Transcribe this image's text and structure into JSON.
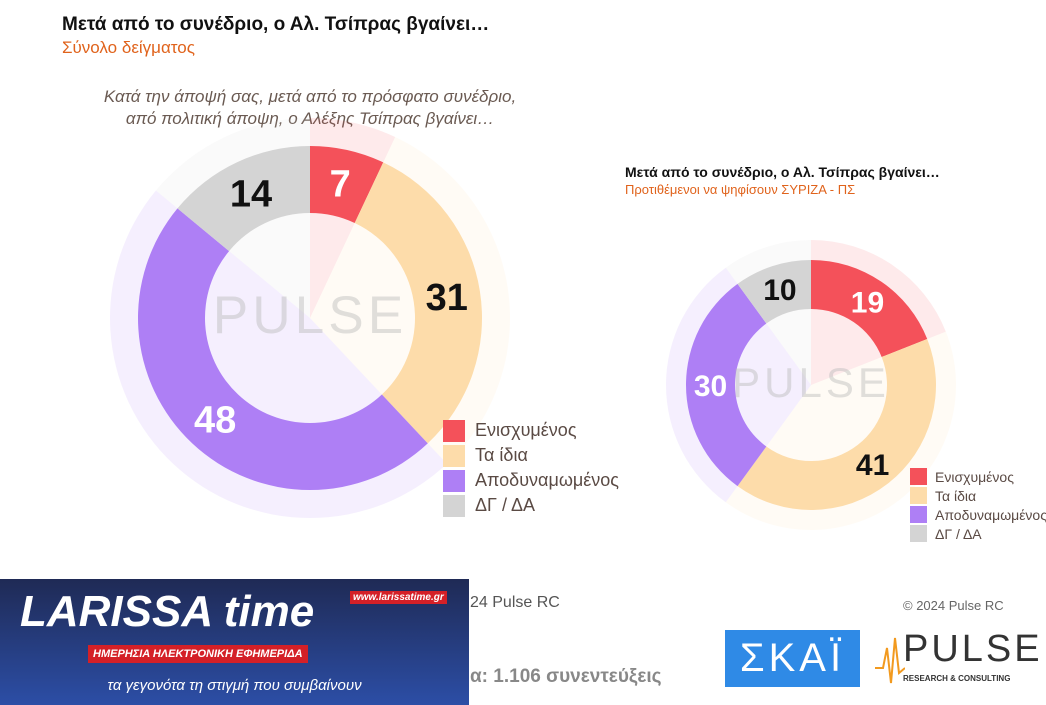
{
  "colors": {
    "Ενισχυμένος": "#f4515a",
    "Τα ίδια": "#fddcaa",
    "Αποδυναμωμένος": "#ae7ff5",
    "ΔΓ / ΔΑ": "#d4d4d4"
  },
  "chart_data": [
    {
      "type": "donut",
      "title": "Μετά από το συνέδριο, ο Αλ. Τσίπρας βγαίνει…",
      "subtitle": "Σύνολο δείγματος",
      "question": "Κατά την άποψή σας, μετά από το πρόσφατο συνέδριο, από πολιτική άποψη, ο Αλέξης Τσίπρας βγαίνει…",
      "categories": [
        "Ενισχυμένος",
        "Τα ίδια",
        "Αποδυναμωμένος",
        "ΔΓ / ΔΑ"
      ],
      "values": [
        7,
        31,
        48,
        14
      ],
      "legend": "bottom-right"
    },
    {
      "type": "donut",
      "title": "Μετά από το συνέδριο, ο Αλ. Τσίπρας βγαίνει…",
      "subtitle": "Προτιθέμενοι να ψηφίσουν ΣΥΡΙΖΑ - ΠΣ",
      "categories": [
        "Ενισχυμένος",
        "Τα ίδια",
        "Αποδυναμωμένος",
        "ΔΓ / ΔΑ"
      ],
      "values": [
        19,
        41,
        30,
        10
      ],
      "legend": "bottom-right"
    }
  ],
  "footer": {
    "copyright_left": "24 Pulse RC",
    "copyright_right": "© 2024 Pulse RC",
    "sample": "α:  1.106 συνεντεύξεις"
  },
  "logos": {
    "larissa": "LARISSA time",
    "larissa_url": "www.larissatime.gr",
    "larissa_tag": "ΗΜΕΡΗΣΙΑ ΗΛΕΚΤΡΟΝΙΚΗ ΕΦΗΜΕΡΙΔΑ",
    "larissa_slogan": "τα γεγονότα τη στιγμή που συμβαίνουν",
    "skai": "ΣΚΑΪ",
    "pulse": "PULSE",
    "pulse_sub": "RESEARCH & CONSULTING"
  }
}
